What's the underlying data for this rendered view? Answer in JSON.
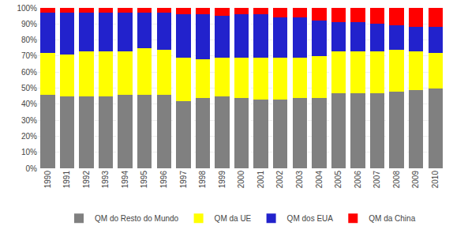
{
  "chart_data": {
    "type": "bar",
    "stacked": true,
    "categories": [
      "1990",
      "1991",
      "1992",
      "1993",
      "1994",
      "1995",
      "1996",
      "1997",
      "1998",
      "1999",
      "2000",
      "2001",
      "2002",
      "2003",
      "2004",
      "2005",
      "2006",
      "2007",
      "2008",
      "2009",
      "2010"
    ],
    "series": [
      {
        "name": "QM do Resto do Mundo",
        "color": "#808080",
        "values": [
          46,
          45,
          45,
          45,
          46,
          46,
          46,
          42,
          44,
          45,
          44,
          43,
          43,
          44,
          44,
          47,
          47,
          47,
          48,
          49,
          50
        ]
      },
      {
        "name": "QM da UE",
        "color": "#ffff00",
        "values": [
          26,
          26,
          28,
          28,
          27,
          29,
          28,
          27,
          24,
          24,
          25,
          26,
          26,
          25,
          26,
          26,
          26,
          26,
          26,
          24,
          22
        ]
      },
      {
        "name": "QM dos EUA",
        "color": "#2222cc",
        "values": [
          25,
          26,
          24,
          24,
          24,
          22,
          23,
          27,
          28,
          26,
          27,
          27,
          25,
          25,
          22,
          18,
          18,
          17,
          15,
          15,
          16
        ]
      },
      {
        "name": "QM da China",
        "color": "#ff0000",
        "values": [
          3,
          3,
          3,
          3,
          3,
          3,
          3,
          4,
          4,
          5,
          4,
          4,
          6,
          6,
          8,
          9,
          9,
          10,
          11,
          12,
          12
        ]
      }
    ],
    "ylim": [
      0,
      100
    ],
    "yticks": [
      {
        "value": 0,
        "label": "0%"
      },
      {
        "value": 10,
        "label": "10%"
      },
      {
        "value": 20,
        "label": "20%"
      },
      {
        "value": 30,
        "label": "30%"
      },
      {
        "value": 40,
        "label": "40%"
      },
      {
        "value": 50,
        "label": "50%"
      },
      {
        "value": 60,
        "label": "60%"
      },
      {
        "value": 70,
        "label": "70%"
      },
      {
        "value": 80,
        "label": "80%"
      },
      {
        "value": 90,
        "label": "90%"
      },
      {
        "value": 100,
        "label": "100%"
      }
    ],
    "grid": true,
    "legend": "bottom"
  }
}
